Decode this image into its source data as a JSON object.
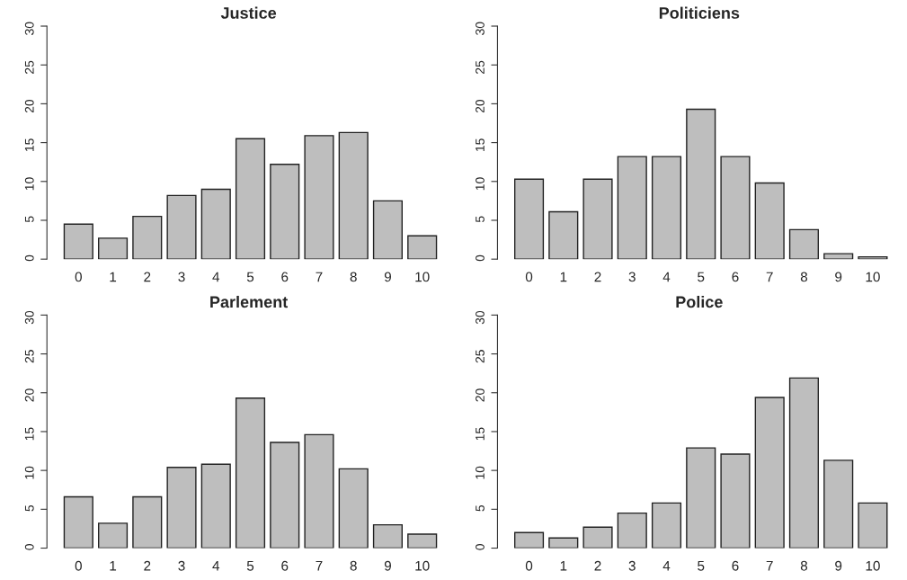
{
  "chart_data": [
    {
      "type": "bar",
      "title": "Justice",
      "categories": [
        "0",
        "1",
        "2",
        "3",
        "4",
        "5",
        "6",
        "7",
        "8",
        "9",
        "10"
      ],
      "values": [
        4.5,
        2.7,
        5.5,
        8.2,
        9.0,
        15.5,
        12.2,
        15.9,
        16.3,
        7.5,
        3.0
      ],
      "color": "#bebebe",
      "ylim": [
        0,
        30
      ],
      "yticks": [
        0,
        5,
        10,
        15,
        20,
        25,
        30
      ],
      "grid": false
    },
    {
      "type": "bar",
      "title": "Politiciens",
      "categories": [
        "0",
        "1",
        "2",
        "3",
        "4",
        "5",
        "6",
        "7",
        "8",
        "9",
        "10"
      ],
      "values": [
        10.3,
        6.1,
        10.3,
        13.2,
        13.2,
        19.3,
        13.2,
        9.8,
        3.8,
        0.7,
        0.3
      ],
      "color": "#bebebe",
      "ylim": [
        0,
        30
      ],
      "yticks": [
        0,
        5,
        10,
        15,
        20,
        25,
        30
      ],
      "grid": false
    },
    {
      "type": "bar",
      "title": "Parlement",
      "categories": [
        "0",
        "1",
        "2",
        "3",
        "4",
        "5",
        "6",
        "7",
        "8",
        "9",
        "10"
      ],
      "values": [
        6.6,
        3.2,
        6.6,
        10.4,
        10.8,
        19.3,
        13.6,
        14.6,
        10.2,
        3.0,
        1.8
      ],
      "color": "#bebebe",
      "ylim": [
        0,
        30
      ],
      "yticks": [
        0,
        5,
        10,
        15,
        20,
        25,
        30
      ],
      "grid": false
    },
    {
      "type": "bar",
      "title": "Police",
      "categories": [
        "0",
        "1",
        "2",
        "3",
        "4",
        "5",
        "6",
        "7",
        "8",
        "9",
        "10"
      ],
      "values": [
        2.0,
        1.3,
        2.7,
        4.5,
        5.8,
        12.9,
        12.1,
        19.4,
        21.9,
        11.3,
        5.8
      ],
      "color": "#bebebe",
      "ylim": [
        0,
        30
      ],
      "yticks": [
        0,
        5,
        10,
        15,
        20,
        25,
        30
      ],
      "grid": false
    }
  ]
}
